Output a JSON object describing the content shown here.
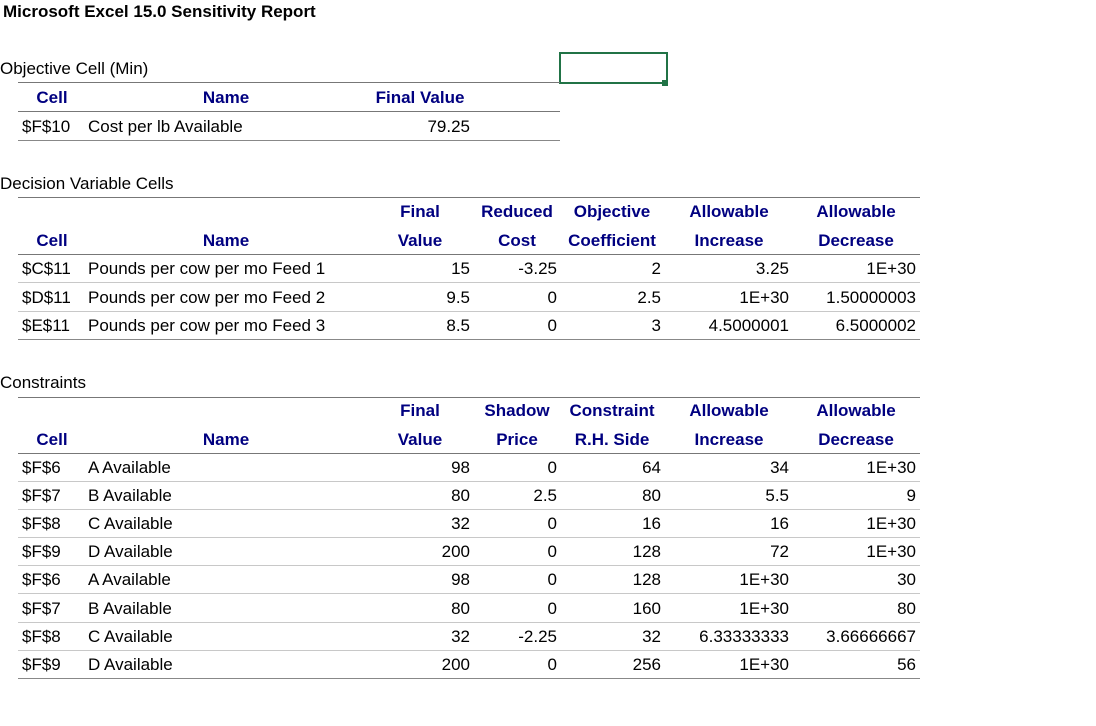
{
  "title": "Microsoft Excel 15.0 Sensitivity Report",
  "objective": {
    "heading": "Objective Cell (Min)",
    "columns": [
      {
        "bottom": "Cell"
      },
      {
        "bottom": "Name"
      },
      {
        "bottom": "Final Value"
      }
    ],
    "rows": [
      [
        "$F$10",
        "Cost per lb Available",
        "79.25"
      ]
    ]
  },
  "variables": {
    "heading": "Decision Variable Cells",
    "columns": [
      {
        "bottom": "Cell"
      },
      {
        "bottom": "Name"
      },
      {
        "top": "Final",
        "bottom": "Value"
      },
      {
        "top": "Reduced",
        "bottom": "Cost"
      },
      {
        "top": "Objective",
        "bottom": "Coefficient"
      },
      {
        "top": "Allowable",
        "bottom": "Increase"
      },
      {
        "top": "Allowable",
        "bottom": "Decrease"
      }
    ],
    "rows": [
      [
        "$C$11",
        "Pounds per cow per mo Feed 1",
        "15",
        "-3.25",
        "2",
        "3.25",
        "1E+30"
      ],
      [
        "$D$11",
        "Pounds per cow per mo Feed 2",
        "9.5",
        "0",
        "2.5",
        "1E+30",
        "1.50000003"
      ],
      [
        "$E$11",
        "Pounds per cow per mo Feed 3",
        "8.5",
        "0",
        "3",
        "4.5000001",
        "6.5000002"
      ]
    ]
  },
  "constraints": {
    "heading": "Constraints",
    "columns": [
      {
        "bottom": "Cell"
      },
      {
        "bottom": "Name"
      },
      {
        "top": "Final",
        "bottom": "Value"
      },
      {
        "top": "Shadow",
        "bottom": "Price"
      },
      {
        "top": "Constraint",
        "bottom": "R.H. Side"
      },
      {
        "top": "Allowable",
        "bottom": "Increase"
      },
      {
        "top": "Allowable",
        "bottom": "Decrease"
      }
    ],
    "rows": [
      [
        "$F$6",
        "A Available",
        "98",
        "0",
        "64",
        "34",
        "1E+30"
      ],
      [
        "$F$7",
        "B Available",
        "80",
        "2.5",
        "80",
        "5.5",
        "9"
      ],
      [
        "$F$8",
        "C Available",
        "32",
        "0",
        "16",
        "16",
        "1E+30"
      ],
      [
        "$F$9",
        "D Available",
        "200",
        "0",
        "128",
        "72",
        "1E+30"
      ],
      [
        "$F$6",
        "A Available",
        "98",
        "0",
        "128",
        "1E+30",
        "30"
      ],
      [
        "$F$7",
        "B Available",
        "80",
        "0",
        "160",
        "1E+30",
        "80"
      ],
      [
        "$F$8",
        "C Available",
        "32",
        "-2.25",
        "32",
        "6.33333333",
        "3.66666667"
      ],
      [
        "$F$9",
        "D Available",
        "200",
        "0",
        "256",
        "1E+30",
        "56"
      ]
    ]
  }
}
